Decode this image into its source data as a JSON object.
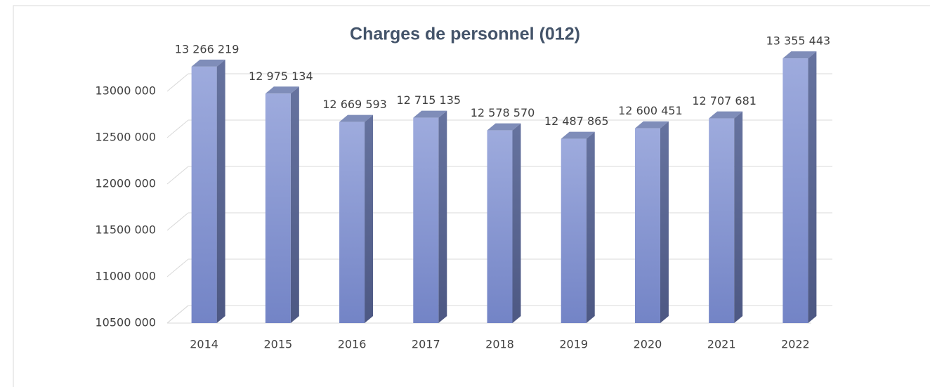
{
  "chart_data": {
    "type": "bar3d",
    "title": "Charges de personnel (012)",
    "categories": [
      "2014",
      "2015",
      "2016",
      "2017",
      "2018",
      "2019",
      "2020",
      "2021",
      "2022"
    ],
    "values": [
      13266219,
      12975134,
      12669593,
      12715135,
      12578570,
      12487865,
      12600451,
      12707681,
      13355443
    ],
    "value_labels": [
      "13 266 219",
      "12 975 134",
      "12 669 593",
      "12 715 135",
      "12 578 570",
      "12 487 865",
      "12 600 451",
      "12 707 681",
      "13 355 443"
    ],
    "color": "#8c9dd8",
    "ylim": [
      10500000,
      13000000
    ],
    "yticks": [
      {
        "value": 10500000,
        "label": "10500 000"
      },
      {
        "value": 11000000,
        "label": "11000 000"
      },
      {
        "value": 11500000,
        "label": "11500 000"
      },
      {
        "value": 12000000,
        "label": "12000 000"
      },
      {
        "value": 12500000,
        "label": "12500 000"
      },
      {
        "value": 13000000,
        "label": "13000 000"
      }
    ],
    "grid": true
  }
}
